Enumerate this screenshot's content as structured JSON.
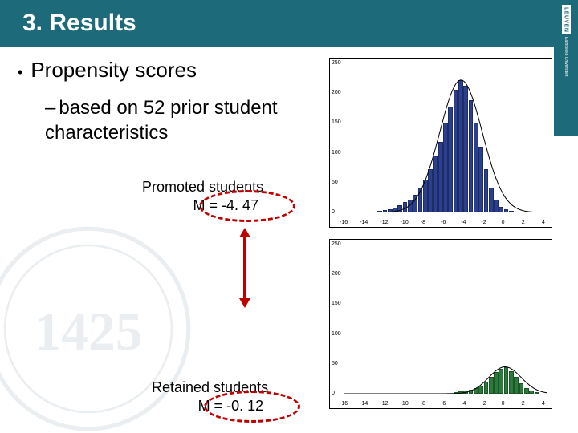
{
  "header": {
    "title": "3. Results"
  },
  "logo": {
    "brand": "LEUVEN",
    "sub": "Katholieke Universiteit"
  },
  "bullet": {
    "text": "Propensity scores"
  },
  "subline": {
    "text": "based on 52 prior student characteristics"
  },
  "promoted": {
    "label": "Promoted students",
    "mean": "M = -4. 47"
  },
  "retained": {
    "label": "Retained students",
    "mean": "M = -0. 12"
  },
  "chart_top": {
    "type": "histogram",
    "xlim": [
      -16,
      4
    ],
    "ylim": [
      0,
      250
    ],
    "xticks": [
      -16,
      -14,
      -12,
      -10,
      -8,
      -6,
      -4,
      -2,
      0,
      2,
      4
    ],
    "yticks": [
      0,
      50,
      100,
      150,
      200,
      250
    ],
    "bar_color": "#2b3f8f",
    "curve_color": "#000000",
    "background_color": "#ffffff",
    "bars": [
      {
        "x": -12.5,
        "y": 3
      },
      {
        "x": -12,
        "y": 4
      },
      {
        "x": -11.5,
        "y": 6
      },
      {
        "x": -11,
        "y": 8
      },
      {
        "x": -10.5,
        "y": 12
      },
      {
        "x": -10,
        "y": 18
      },
      {
        "x": -9.5,
        "y": 22
      },
      {
        "x": -9,
        "y": 30
      },
      {
        "x": -8.5,
        "y": 42
      },
      {
        "x": -8,
        "y": 55
      },
      {
        "x": -7.5,
        "y": 72
      },
      {
        "x": -7,
        "y": 95
      },
      {
        "x": -6.5,
        "y": 118
      },
      {
        "x": -6,
        "y": 150
      },
      {
        "x": -5.5,
        "y": 178
      },
      {
        "x": -5,
        "y": 205
      },
      {
        "x": -4.5,
        "y": 222
      },
      {
        "x": -4,
        "y": 212
      },
      {
        "x": -3.5,
        "y": 188
      },
      {
        "x": -3,
        "y": 150
      },
      {
        "x": -2.5,
        "y": 110
      },
      {
        "x": -2,
        "y": 72
      },
      {
        "x": -1.5,
        "y": 42
      },
      {
        "x": -1,
        "y": 22
      },
      {
        "x": -0.5,
        "y": 10
      },
      {
        "x": 0,
        "y": 5
      },
      {
        "x": 0.5,
        "y": 2
      }
    ],
    "curve_mean": -4.47,
    "curve_sd": 2.1,
    "curve_peak": 222
  },
  "chart_bottom": {
    "type": "histogram",
    "xlim": [
      -16,
      4
    ],
    "ylim": [
      0,
      250
    ],
    "xticks": [
      -16,
      -14,
      -12,
      -10,
      -8,
      -6,
      -4,
      -2,
      0,
      2,
      4
    ],
    "yticks": [
      0,
      50,
      100,
      150,
      200,
      250
    ],
    "bar_color": "#2a7a3a",
    "curve_color": "#000000",
    "background_color": "#ffffff",
    "bars": [
      {
        "x": -5,
        "y": 3
      },
      {
        "x": -4.5,
        "y": 4
      },
      {
        "x": -4,
        "y": 5
      },
      {
        "x": -3.5,
        "y": 7
      },
      {
        "x": -3,
        "y": 10
      },
      {
        "x": -2.5,
        "y": 14
      },
      {
        "x": -2,
        "y": 20
      },
      {
        "x": -1.5,
        "y": 28
      },
      {
        "x": -1,
        "y": 36
      },
      {
        "x": -0.5,
        "y": 42
      },
      {
        "x": 0,
        "y": 45
      },
      {
        "x": 0.5,
        "y": 38
      },
      {
        "x": 1,
        "y": 28
      },
      {
        "x": 1.5,
        "y": 18
      },
      {
        "x": 2,
        "y": 10
      },
      {
        "x": 2.5,
        "y": 5
      },
      {
        "x": 3,
        "y": 2
      }
    ],
    "curve_mean": -0.12,
    "curve_sd": 1.6,
    "curve_peak": 45
  }
}
